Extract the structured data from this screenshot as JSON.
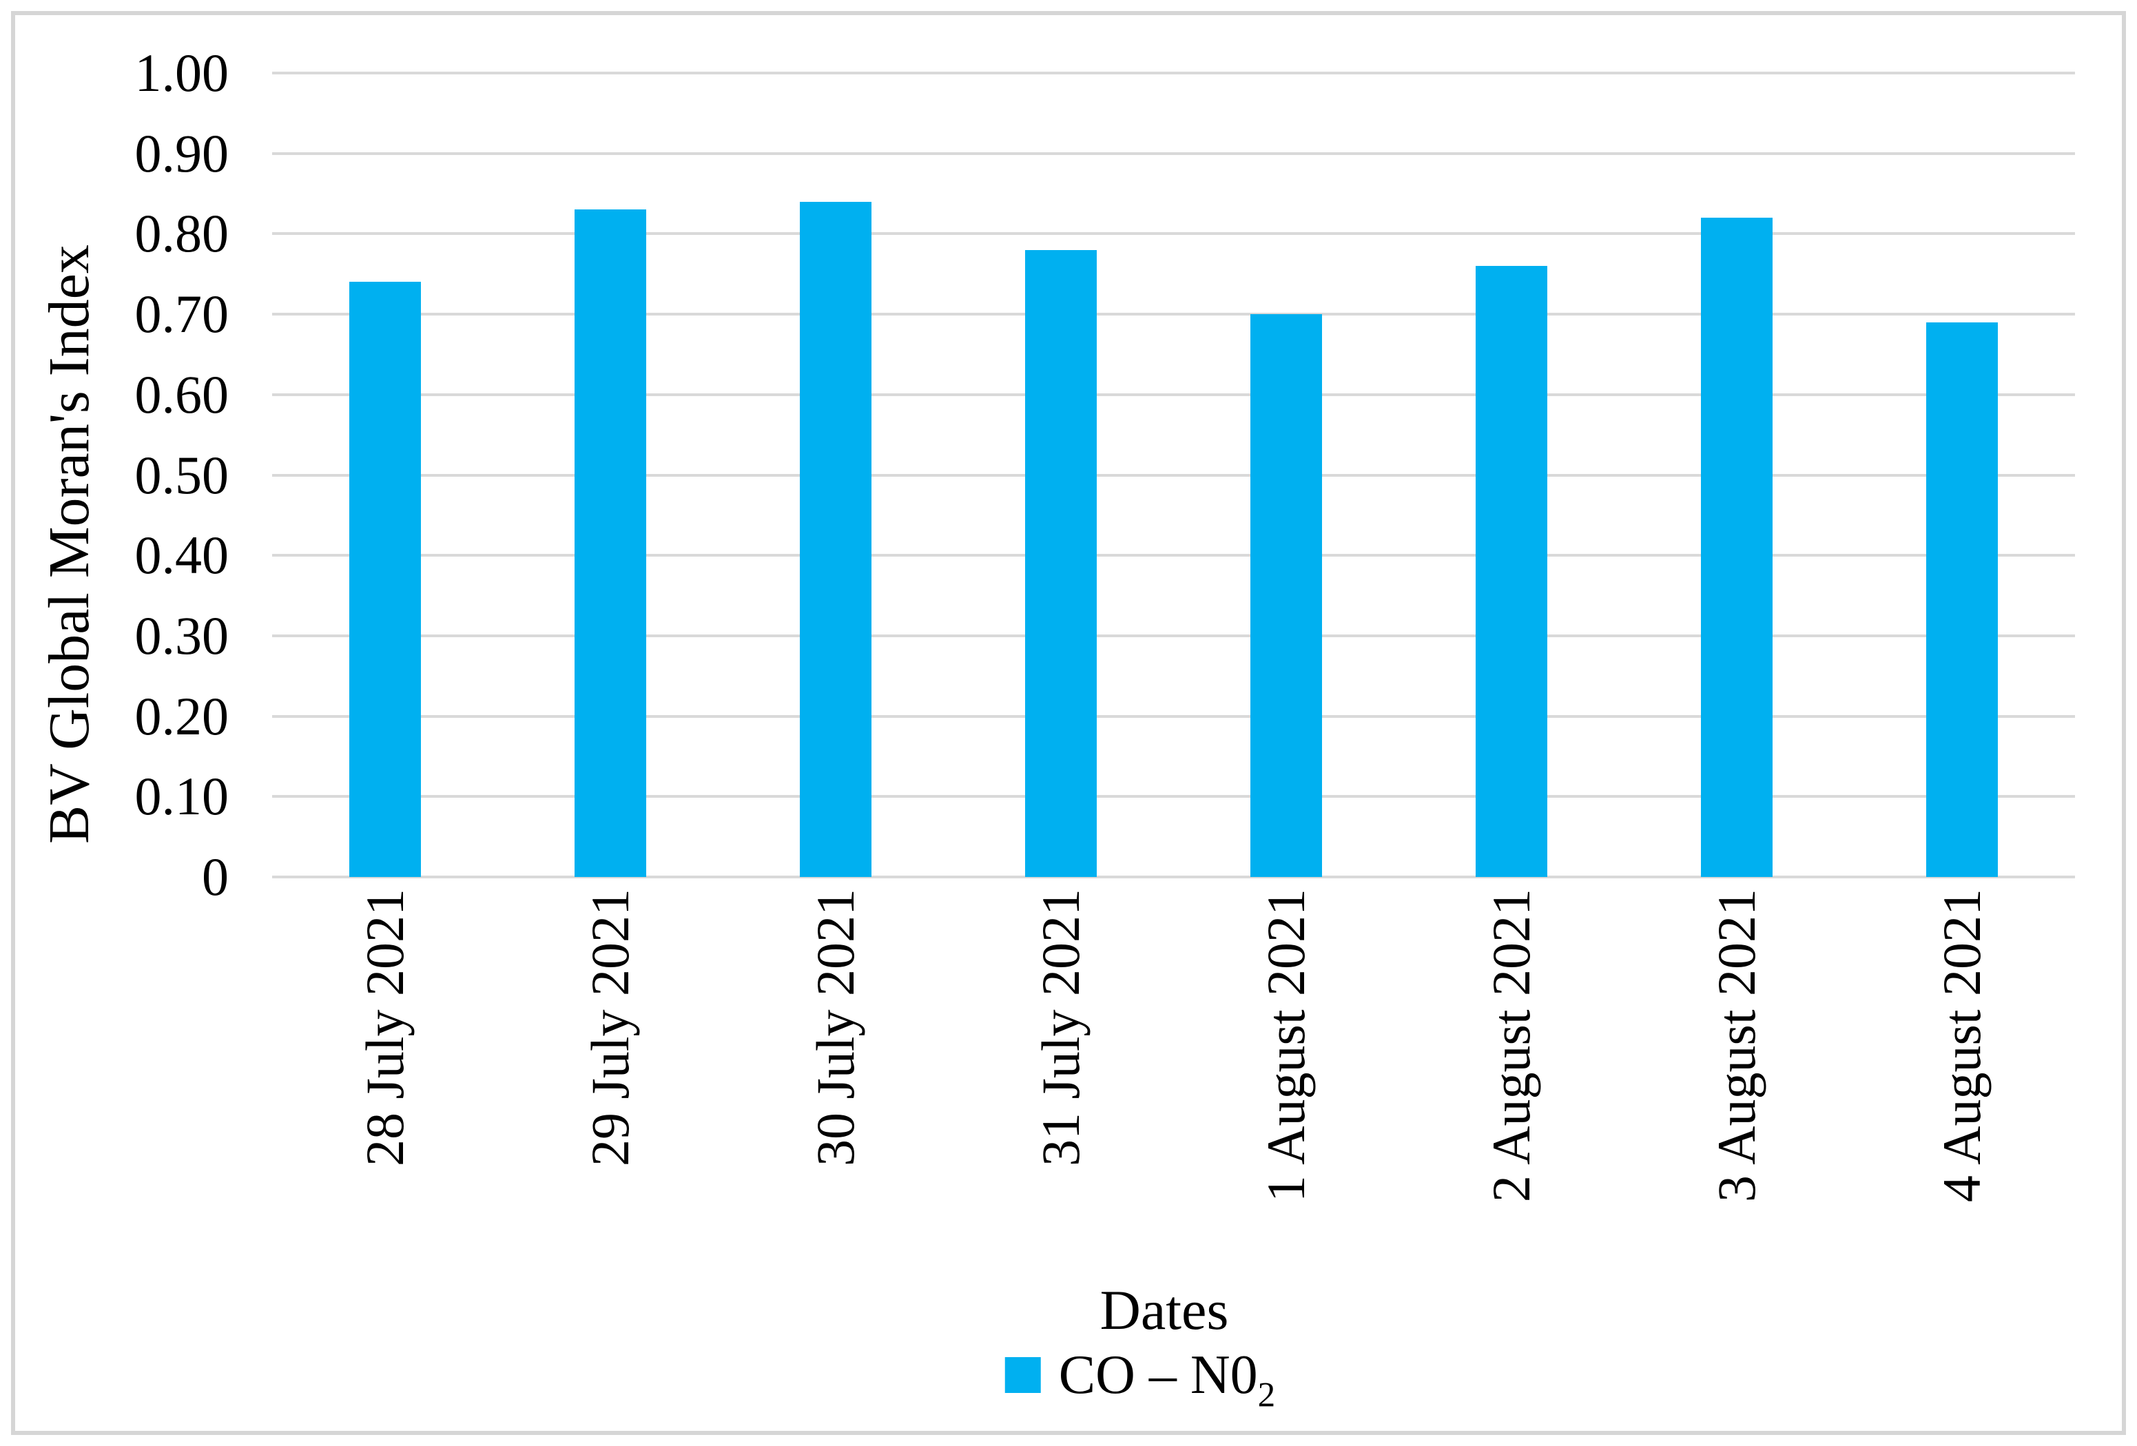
{
  "chart_data": {
    "type": "bar",
    "title": "",
    "categories": [
      "28 July 2021",
      "29 July 2021",
      "30 July 2021",
      "31 July 2021",
      "1 August 2021",
      "2 August 2021",
      "3 August 2021",
      "4 August 2021"
    ],
    "series": [
      {
        "name": "CO – N0₂",
        "values": [
          0.74,
          0.83,
          0.84,
          0.78,
          0.7,
          0.76,
          0.82,
          0.69
        ]
      }
    ],
    "xlabel": "Dates",
    "ylabel": "BV Global Moran's Index",
    "ylim": [
      0,
      1.0
    ],
    "yticks": [
      {
        "value": 1.0,
        "label": "1.00"
      },
      {
        "value": 0.9,
        "label": "0.90"
      },
      {
        "value": 0.8,
        "label": "0.80"
      },
      {
        "value": 0.7,
        "label": "0.70"
      },
      {
        "value": 0.6,
        "label": "0.60"
      },
      {
        "value": 0.5,
        "label": "0.50"
      },
      {
        "value": 0.4,
        "label": "0.40"
      },
      {
        "value": 0.3,
        "label": "0.30"
      },
      {
        "value": 0.2,
        "label": "0.20"
      },
      {
        "value": 0.1,
        "label": "0.10"
      },
      {
        "value": 0,
        "label": "0"
      }
    ],
    "grid": "horizontal",
    "legend_position": "bottom",
    "bar_color": "#00b0f0",
    "gridline_color": "#d9d9d9"
  },
  "legend": {
    "label_main": "CO – N0",
    "label_sub": "2"
  },
  "colors": {
    "bar": "#00b0f0",
    "gridline": "#d9d9d9",
    "frame_border": "#d6d6d6",
    "text": "#000000"
  }
}
